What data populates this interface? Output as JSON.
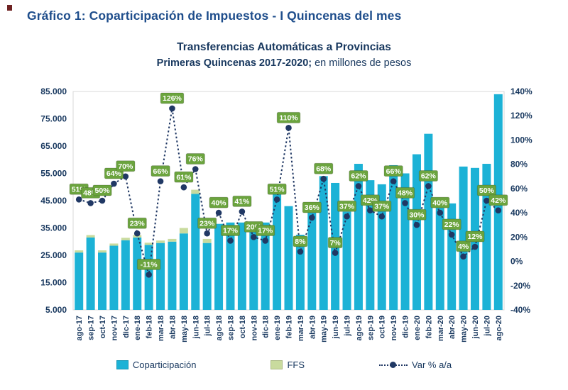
{
  "page": {
    "heading": "Gráfico 1: Coparticipación de Impuestos - I Quincenas del mes"
  },
  "chart": {
    "title": "Transferencias Automáticas a Provincias",
    "subtitle_bold": "Primeras Quincenas 2017-2020;",
    "subtitle_units": " en millones de pesos"
  },
  "legend": {
    "coparticipacion": "Coparticipación",
    "ffs": "FFS",
    "var": "Var % a/a"
  },
  "colors": {
    "bar": "#1CB2D6",
    "ffs": "#C9DB9E",
    "line": "#203864",
    "label_box": "#6BA43E",
    "label_text": "#FFFFFF",
    "axis_text": "#17375E"
  },
  "chart_data": {
    "type": "combo",
    "categories": [
      "ago-17",
      "sep-17",
      "oct-17",
      "nov-17",
      "dic-17",
      "ene-18",
      "feb-18",
      "mar-18",
      "abr-18",
      "may-18",
      "jun-18",
      "jul-18",
      "ago-18",
      "sep-18",
      "oct-18",
      "nov-18",
      "dic-18",
      "ene-19",
      "feb-19",
      "mar-19",
      "abr-19",
      "may-19",
      "jun-19",
      "jul-19",
      "ago-19",
      "sep-19",
      "oct-19",
      "nov-19",
      "dic-19",
      "ene-20",
      "feb-20",
      "mar-20",
      "abr-20",
      "may-20",
      "jun-20",
      "jul-20",
      "ago-20"
    ],
    "series": [
      {
        "name": "Coparticipación",
        "type": "bar",
        "axis": "left",
        "values": [
          26000,
          31500,
          26000,
          28500,
          30500,
          31500,
          28800,
          29500,
          30000,
          33000,
          47500,
          29500,
          36500,
          37000,
          37000,
          35000,
          37000,
          47500,
          43000,
          32500,
          42000,
          54000,
          51500,
          41000,
          58500,
          52500,
          51000,
          58000,
          55000,
          62000,
          69500,
          45500,
          44000,
          57500,
          57000,
          58500,
          84000
        ]
      },
      {
        "name": "FFS",
        "type": "bar",
        "stacked_on": "Coparticipación",
        "axis": "left",
        "values": [
          800,
          900,
          800,
          800,
          900,
          900,
          800,
          900,
          1000,
          2000,
          1500,
          1500,
          0,
          0,
          0,
          0,
          0,
          0,
          0,
          0,
          0,
          0,
          0,
          0,
          0,
          0,
          0,
          0,
          0,
          0,
          0,
          0,
          0,
          0,
          0,
          0,
          0
        ]
      },
      {
        "name": "Var % a/a",
        "type": "line",
        "axis": "right",
        "unit": "%",
        "values": [
          51,
          48,
          50,
          64,
          70,
          23,
          -11,
          66,
          126,
          61,
          76,
          23,
          40,
          17,
          41,
          20,
          17,
          51,
          110,
          8,
          36,
          68,
          7,
          37,
          62,
          42,
          37,
          66,
          48,
          30,
          62,
          40,
          22,
          4,
          12,
          50,
          42
        ],
        "labels": [
          "51%",
          "48%",
          "50%",
          "64%",
          "70%",
          "23%",
          "-11%",
          "66%",
          "126%",
          "61%",
          "76%",
          "23%",
          "40%",
          "17%",
          "41%",
          "20%",
          "17%",
          "51%",
          "110%",
          "8%",
          "36%",
          "68%",
          "7%",
          "37%",
          "62%",
          "42%",
          "37%",
          "66%",
          "48%",
          "30%",
          "62%",
          "40%",
          "22%",
          "4%",
          "12%",
          "50%",
          "42%"
        ]
      }
    ],
    "left_axis": {
      "min": 5000,
      "max": 85000,
      "step": 10000,
      "tick_labels": [
        "85.000",
        "75.000",
        "65.000",
        "55.000",
        "45.000",
        "35.000",
        "25.000",
        "15.000",
        "5.000"
      ]
    },
    "right_axis": {
      "min": -40,
      "max": 140,
      "step": 20,
      "tick_labels": [
        "140%",
        "120%",
        "100%",
        "80%",
        "60%",
        "40%",
        "20%",
        "0%",
        "-20%",
        "-40%"
      ]
    },
    "grid": false,
    "legend_position": "bottom"
  }
}
